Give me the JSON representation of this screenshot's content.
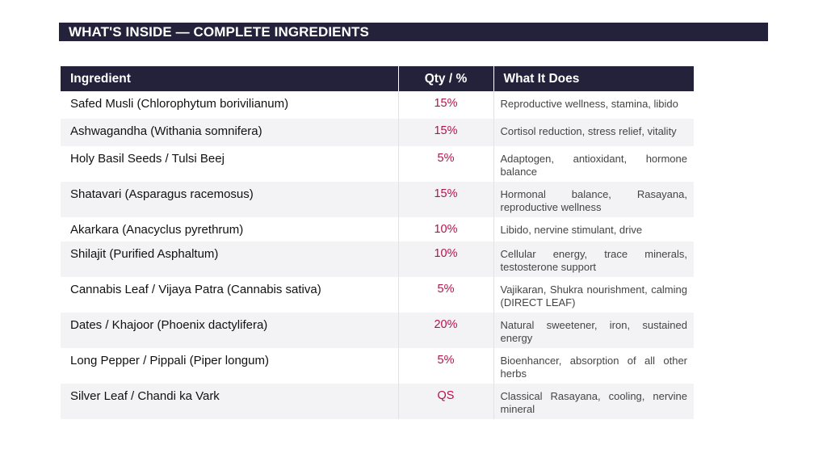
{
  "banner": {
    "title": "WHAT'S INSIDE — COMPLETE INGREDIENTS"
  },
  "table": {
    "headers": {
      "ingredient": "Ingredient",
      "qty": "Qty / %",
      "what": "What It Does"
    },
    "rows": [
      {
        "ingredient": "Safed Musli (Chlorophytum borivilianum)",
        "qty": "15%",
        "what": "Reproductive wellness, stamina, libido"
      },
      {
        "ingredient": "Ashwagandha (Withania somnifera)",
        "qty": "15%",
        "what": "Cortisol reduction, stress relief, vitality"
      },
      {
        "ingredient": "Holy Basil Seeds / Tulsi Beej",
        "qty": "5%",
        "what": "Adaptogen, antioxidant, hormone balance"
      },
      {
        "ingredient": "Shatavari (Asparagus racemosus)",
        "qty": "15%",
        "what": "Hormonal balance, Rasayana, reproductive wellness"
      },
      {
        "ingredient": "Akarkara (Anacyclus pyrethrum)",
        "qty": "10%",
        "what": "Libido, nervine stimulant, drive"
      },
      {
        "ingredient": "Shilajit (Purified Asphaltum)",
        "qty": "10%",
        "what": "Cellular energy, trace minerals, testosterone support"
      },
      {
        "ingredient": "Cannabis Leaf / Vijaya Patra (Cannabis sativa)",
        "qty": "5%",
        "what": "Vajikaran, Shukra nourishment, calming (DIRECT LEAF)"
      },
      {
        "ingredient": "Dates / Khajoor (Phoenix dactylifera)",
        "qty": "20%",
        "what": "Natural sweetener, iron, sustained energy"
      },
      {
        "ingredient": "Long Pepper / Pippali (Piper longum)",
        "qty": "5%",
        "what": "Bioenhancer, absorption of all other herbs"
      },
      {
        "ingredient": "Silver Leaf / Chandi ka Vark",
        "qty": "QS",
        "what": "Classical Rasayana, cooling, nervine mineral"
      }
    ]
  },
  "colors": {
    "header_bg": "#23223a",
    "qty_text": "#b5124a",
    "stripe_bg": "#f3f3f5"
  }
}
